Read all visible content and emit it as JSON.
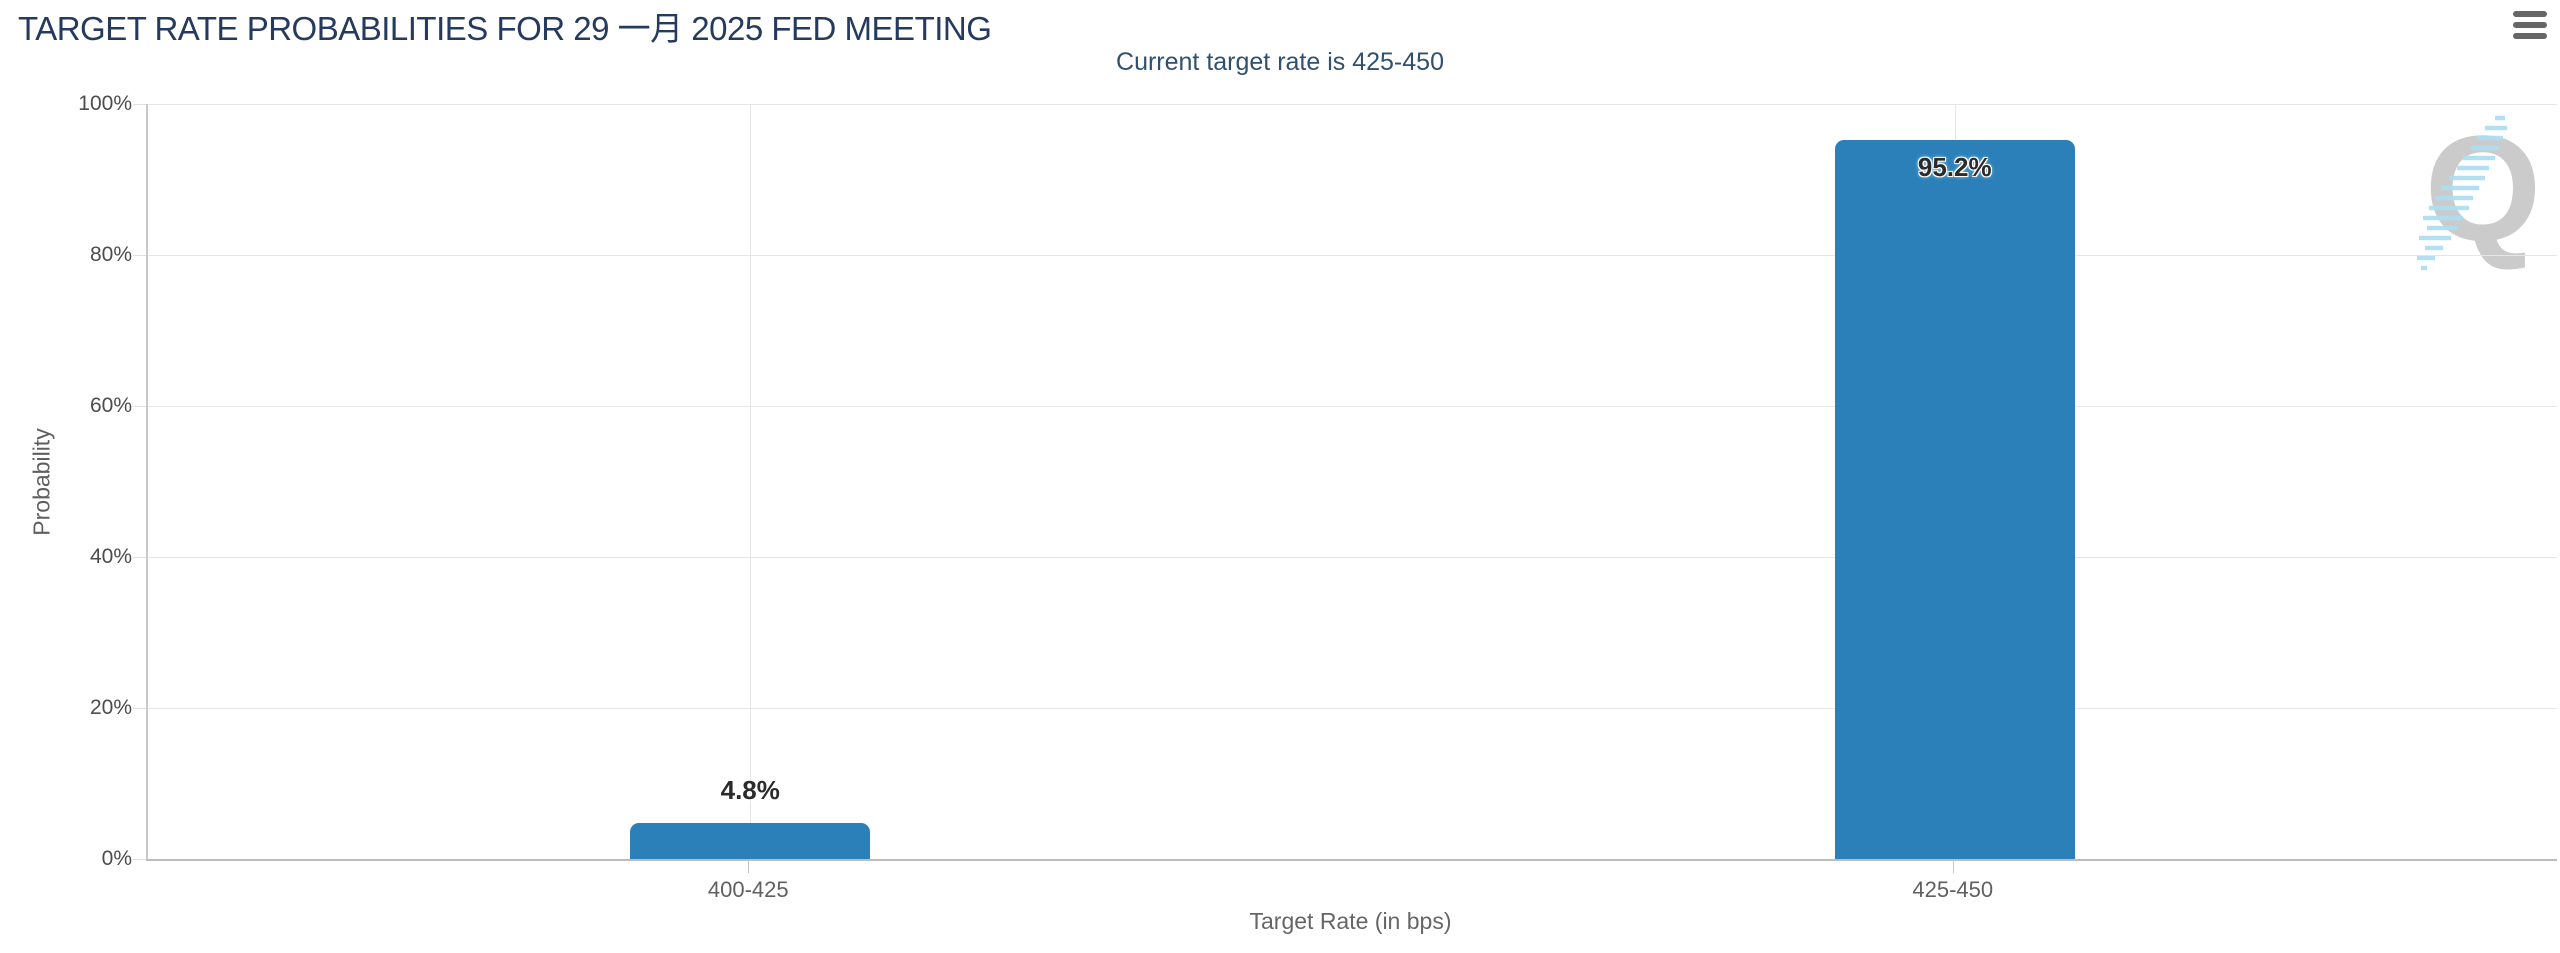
{
  "chart_data": {
    "type": "bar",
    "title": "TARGET RATE PROBABILITIES FOR 29 一月 2025 FED MEETING",
    "subtitle": "Current target rate is 425-450",
    "categories": [
      "400-425",
      "425-450"
    ],
    "values": [
      4.8,
      95.2
    ],
    "data_labels": [
      "4.8%",
      "95.2%"
    ],
    "xlabel": "Target Rate (in bps)",
    "ylabel": "Probability",
    "ylim": [
      0,
      100
    ],
    "yticks": [
      "0%",
      "20%",
      "40%",
      "60%",
      "80%",
      "100%"
    ],
    "grid": true,
    "legend": "none",
    "bar_color": "#2b80b9",
    "title_color": "#253a5e",
    "subtitle_color": "#30506e",
    "watermark_letter": "Q"
  },
  "icons": {
    "context_menu": "hamburger-icon",
    "watermark": "quikstrike-q-watermark"
  }
}
